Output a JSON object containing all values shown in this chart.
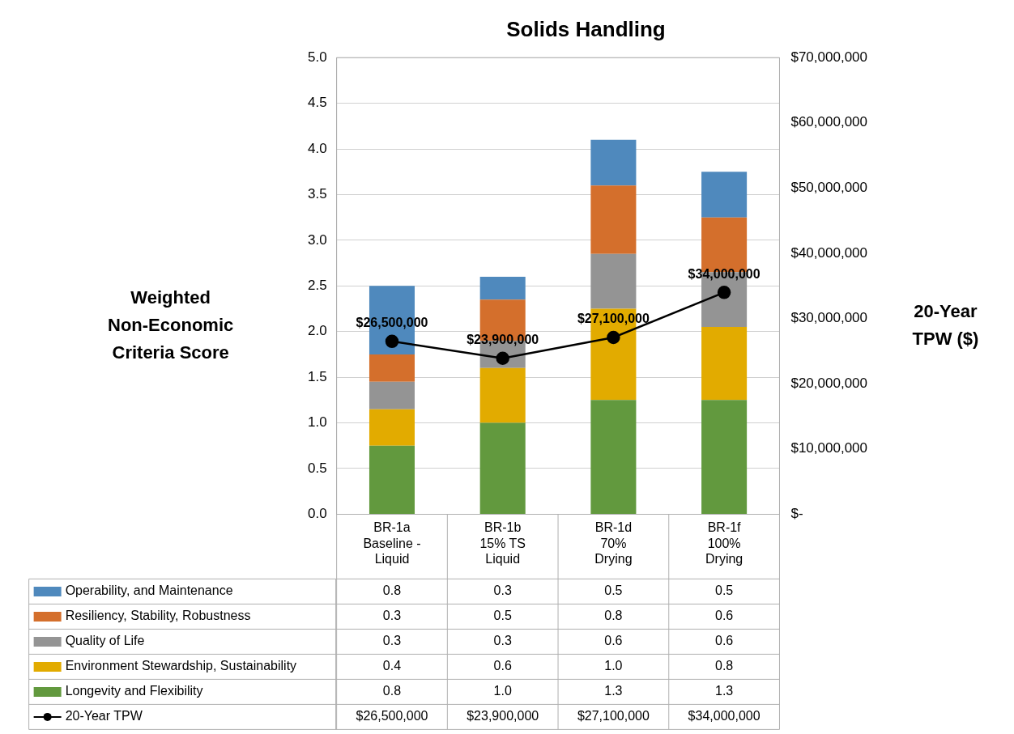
{
  "chart_data": {
    "type": "bar",
    "title": "Solids Handling",
    "ylabel": "Weighted Non-Economic Criteria Score",
    "y2label": "20-Year TPW ($)",
    "categories": [
      "BR-1a Baseline - Liquid",
      "BR-1b 15% TS Liquid",
      "BR-1d 70% Drying",
      "BR-1f 100% Drying"
    ],
    "stacked": true,
    "series": [
      {
        "name": "Longevity and Flexibility",
        "color": "#62993e",
        "values": [
          0.75,
          1.0,
          1.25,
          1.25
        ],
        "value_labels": [
          "0.8",
          "1.0",
          "1.3",
          "1.3"
        ]
      },
      {
        "name": "Environment Stewardship, Sustainability",
        "color": "#e2ab00",
        "values": [
          0.4,
          0.6,
          1.0,
          0.8
        ],
        "value_labels": [
          "0.4",
          "0.6",
          "1.0",
          "0.8"
        ]
      },
      {
        "name": "Quality of Life",
        "color": "#949494",
        "values": [
          0.3,
          0.3,
          0.6,
          0.6
        ],
        "value_labels": [
          "0.3",
          "0.3",
          "0.6",
          "0.6"
        ]
      },
      {
        "name": "Resiliency, Stability, Robustness",
        "color": "#d46f2c",
        "values": [
          0.3,
          0.45,
          0.75,
          0.6
        ],
        "value_labels": [
          "0.3",
          "0.5",
          "0.8",
          "0.6"
        ]
      },
      {
        "name": "Operability, and Maintenance",
        "color": "#4f89bd",
        "values": [
          0.75,
          0.25,
          0.5,
          0.5
        ],
        "value_labels": [
          "0.8",
          "0.3",
          "0.5",
          "0.5"
        ]
      },
      {
        "name": "20-Year TPW",
        "type": "line",
        "axis": "y2",
        "color": "#000000",
        "values": [
          26500000,
          23900000,
          27100000,
          34000000
        ],
        "value_labels": [
          "$26,500,000",
          "$23,900,000",
          "$27,100,000",
          "$34,000,000"
        ]
      }
    ],
    "ylim": [
      0,
      5
    ],
    "yticks": [
      {
        "value": 0,
        "label": "0.0"
      },
      0.5,
      {
        "value": 1,
        "label": "1.0"
      },
      1.5,
      {
        "value": 2,
        "label": "2.0"
      },
      2.5,
      {
        "value": 3,
        "label": "3.0"
      },
      3.5,
      {
        "value": 4,
        "label": "4.0"
      },
      4.5,
      {
        "value": 5,
        "label": "5.0"
      }
    ],
    "y2lim": [
      0,
      70000000
    ],
    "y2ticks": [
      {
        "value": 0,
        "label": "$-"
      },
      {
        "value": 10000000,
        "label": "$10,000,000"
      },
      {
        "value": 20000000,
        "label": "$20,000,000"
      },
      {
        "value": 30000000,
        "label": "$30,000,000"
      },
      {
        "value": 40000000,
        "label": "$40,000,000"
      },
      {
        "value": 50000000,
        "label": "$50,000,000"
      },
      {
        "value": 60000000,
        "label": "$60,000,000"
      },
      {
        "value": 70000000,
        "label": "$70,000,000"
      }
    ],
    "grid": "y",
    "legend": "bottom",
    "marker": "circle"
  }
}
